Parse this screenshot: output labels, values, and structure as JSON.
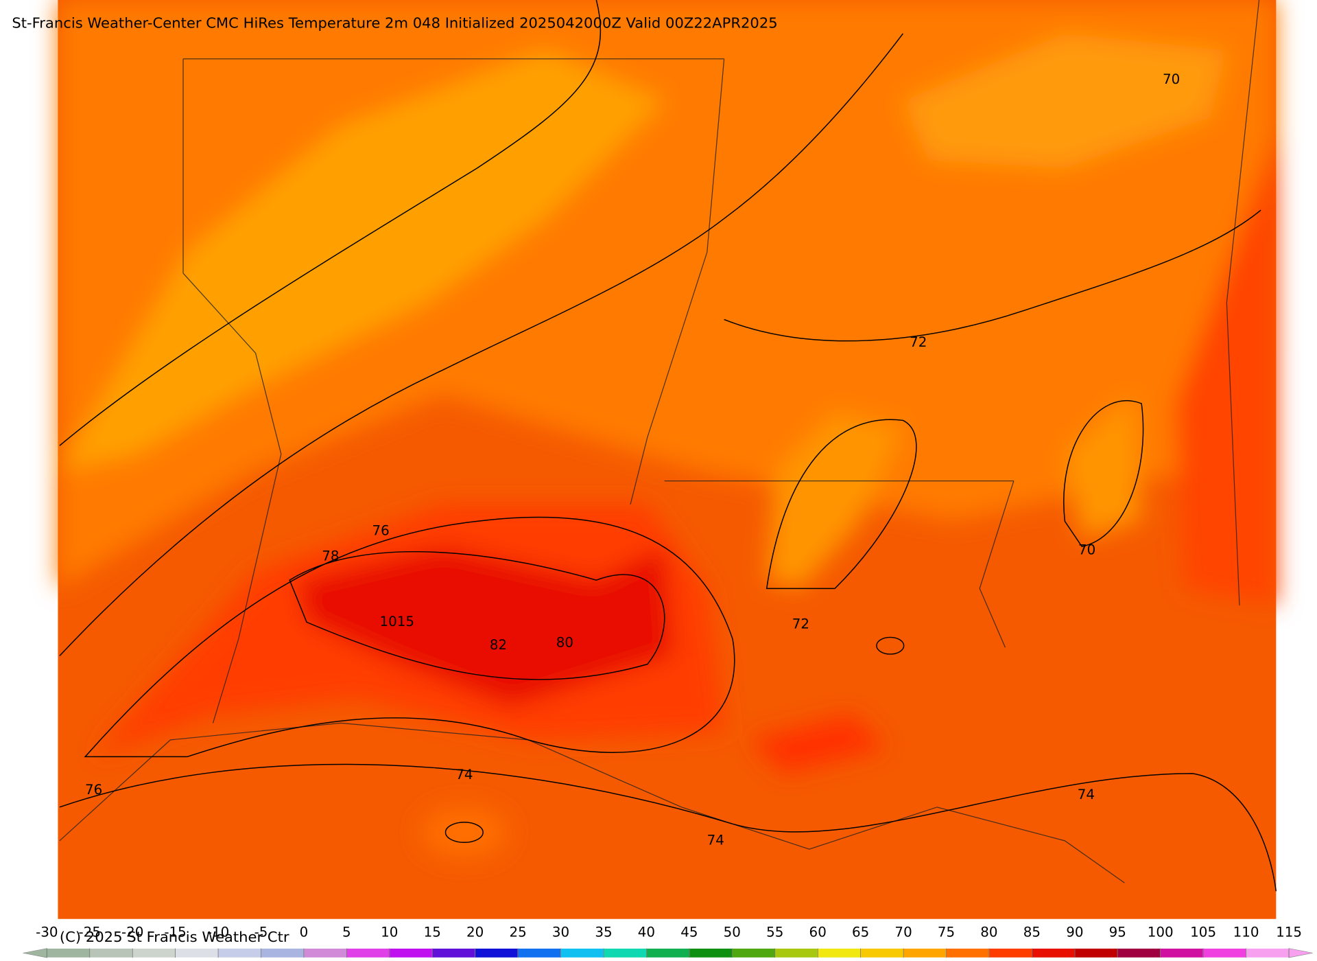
{
  "title": "St-Francis Weather-Center CMC HiRes Temperature 2m  048 Initialized 2025042000Z Valid 00Z22APR2025",
  "contour_labels": [
    "70",
    "72",
    "76",
    "78",
    "1015",
    "82",
    "80",
    "72",
    "70",
    "74",
    "76",
    "74",
    "74"
  ],
  "colorbar": {
    "ticks": [
      -30,
      -25,
      -20,
      -15,
      -10,
      -5,
      0,
      5,
      10,
      15,
      20,
      25,
      30,
      35,
      40,
      45,
      50,
      55,
      60,
      65,
      70,
      75,
      80,
      85,
      90,
      95,
      100,
      105,
      110,
      115
    ],
    "colors": [
      "#9fb59f",
      "#b7c4b7",
      "#cdd3cd",
      "#dcdfe6",
      "#c6cde8",
      "#a9b4e0",
      "#d08ad8",
      "#e040e8",
      "#c010f0",
      "#6010d8",
      "#1010d8",
      "#1070f0",
      "#10c0f0",
      "#10d8b0",
      "#10b050",
      "#109010",
      "#50a810",
      "#a8c810",
      "#f0e810",
      "#f8c800",
      "#ffa500",
      "#ff7000",
      "#ff3c00",
      "#e81000",
      "#c00000",
      "#a00040",
      "#d010a0",
      "#f040e0",
      "#f8a0f0"
    ]
  },
  "copyright": "(C) 2025 St Francis Weather Ctr"
}
